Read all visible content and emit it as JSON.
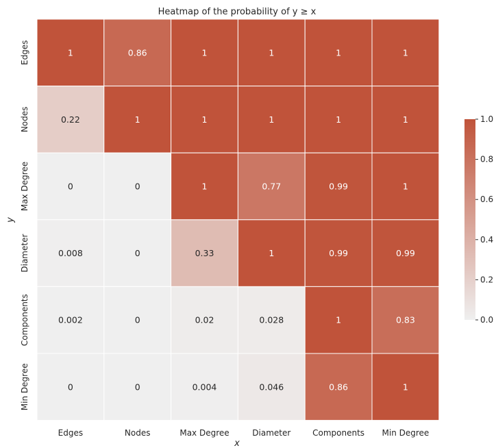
{
  "chart_data": {
    "type": "heatmap",
    "title": "Heatmap of the probability of y ≥ x",
    "xlabel": "x",
    "ylabel": "y",
    "x_categories": [
      "Edges",
      "Nodes",
      "Max Degree",
      "Diameter",
      "Components",
      "Min Degree"
    ],
    "y_categories": [
      "Edges",
      "Nodes",
      "Max Degree",
      "Diameter",
      "Components",
      "Min Degree"
    ],
    "values": [
      [
        1,
        0.86,
        1,
        1,
        1,
        1
      ],
      [
        0.22,
        1,
        1,
        1,
        1,
        1
      ],
      [
        0,
        0,
        1,
        0.77,
        0.99,
        1
      ],
      [
        0.008,
        0,
        0.33,
        1,
        0.99,
        0.99
      ],
      [
        0.002,
        0,
        0.02,
        0.028,
        1,
        0.83
      ],
      [
        0,
        0,
        0.004,
        0.046,
        0.86,
        1
      ]
    ],
    "cell_labels": [
      [
        "1",
        "0.86",
        "1",
        "1",
        "1",
        "1"
      ],
      [
        "0.22",
        "1",
        "1",
        "1",
        "1",
        "1"
      ],
      [
        "0",
        "0",
        "1",
        "0.77",
        "0.99",
        "1"
      ],
      [
        "0.008",
        "0",
        "0.33",
        "1",
        "0.99",
        "0.99"
      ],
      [
        "0.002",
        "0",
        "0.02",
        "0.028",
        "1",
        "0.83"
      ],
      [
        "0",
        "0",
        "0.004",
        "0.046",
        "0.86",
        "1"
      ]
    ],
    "colorbar": {
      "range": [
        0,
        1
      ],
      "ticks": [
        0.0,
        0.2,
        0.4,
        0.6,
        0.8,
        1.0
      ],
      "tick_labels": [
        "0.0",
        "0.2",
        "0.4",
        "0.6",
        "0.8",
        "1.0"
      ]
    },
    "colors": {
      "low": "#efefef",
      "high": "#c0533a"
    },
    "grid": true,
    "legend": "right"
  }
}
